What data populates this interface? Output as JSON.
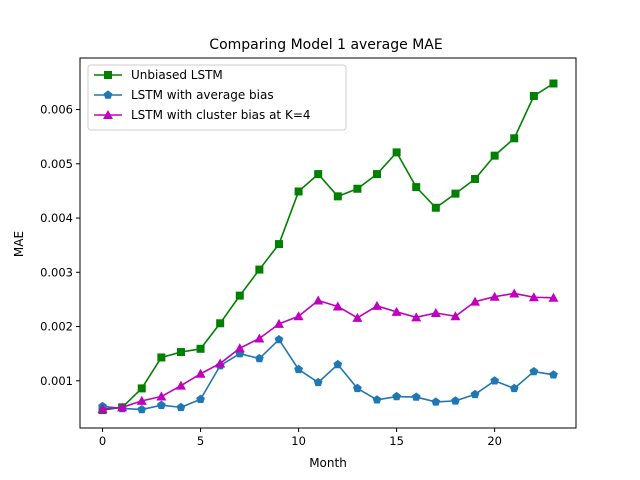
{
  "chart_data": {
    "type": "line",
    "title": "Comparing Model 1 average MAE",
    "xlabel": "Month",
    "ylabel": "MAE",
    "xlim": [
      -1.15,
      24.15
    ],
    "ylim": [
      0.00013,
      0.00695
    ],
    "xticks": [
      0,
      5,
      10,
      15,
      20
    ],
    "xtick_labels": [
      "0",
      "5",
      "10",
      "15",
      "20"
    ],
    "yticks": [
      0.001,
      0.002,
      0.003,
      0.004,
      0.005,
      0.006
    ],
    "ytick_labels": [
      "0.001",
      "0.002",
      "0.003",
      "0.004",
      "0.005",
      "0.006"
    ],
    "grid": false,
    "legend_position": "upper left",
    "x": [
      0,
      1,
      2,
      3,
      4,
      5,
      6,
      7,
      8,
      9,
      10,
      11,
      12,
      13,
      14,
      15,
      16,
      17,
      18,
      19,
      20,
      21,
      22,
      23
    ],
    "series": [
      {
        "name": "Unbiased LSTM",
        "color": "#008000",
        "marker": "square",
        "values": [
          0.00046,
          0.00051,
          0.00086,
          0.00143,
          0.00153,
          0.00159,
          0.00206,
          0.00257,
          0.00305,
          0.00352,
          0.00449,
          0.00481,
          0.0044,
          0.00454,
          0.00481,
          0.00521,
          0.00457,
          0.00419,
          0.00445,
          0.00472,
          0.00515,
          0.00547,
          0.00625,
          0.00648
        ]
      },
      {
        "name": "LSTM with average bias",
        "color": "#1f77b4",
        "marker": "pentagon",
        "values": [
          0.00053,
          0.00049,
          0.00047,
          0.00055,
          0.00051,
          0.00066,
          0.00128,
          0.0015,
          0.00141,
          0.00176,
          0.00121,
          0.00097,
          0.0013,
          0.00086,
          0.00065,
          0.00071,
          0.0007,
          0.00061,
          0.00063,
          0.00075,
          0.001,
          0.00086,
          0.00117,
          0.00111
        ]
      },
      {
        "name": "LSTM with cluster bias at K=4",
        "color": "#bf00bf",
        "marker": "triangle",
        "values": [
          0.00048,
          0.00051,
          0.00063,
          0.00071,
          0.00091,
          0.00113,
          0.00132,
          0.0016,
          0.00178,
          0.00205,
          0.00219,
          0.00248,
          0.00237,
          0.00216,
          0.00238,
          0.00227,
          0.00217,
          0.00225,
          0.00219,
          0.00246,
          0.00255,
          0.00261,
          0.00254,
          0.00253
        ]
      }
    ]
  }
}
